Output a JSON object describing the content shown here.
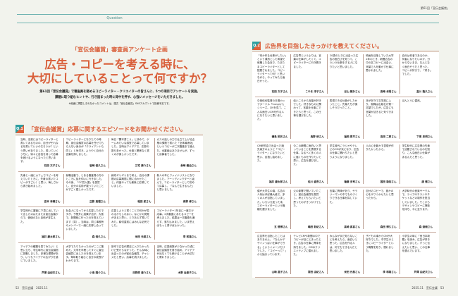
{
  "header": {
    "section_label": "Question",
    "issue_label": "第61回「宣伝会議賞」"
  },
  "intro": {
    "subtitle": "「宣伝会議賞」審査員アンケート企画",
    "title_line1": "広告・コピーを考える時に、",
    "title_line2": "大切にしていることって何ですか？",
    "lead_line1": "第61回「宣伝会議賞」で審査員を務めるコピーライター・クリエイターの皆さんに、5つの項目でアンケートを実施。",
    "lead_line2": "課題に取り組むヒントや、行き詰まった時に背中を押す、心強いメッセージをいただきました。",
    "note": "※紙面に掲載しきれなかったコメントは、雑文「宣伝会議賞」SNSアカウントで投稿予定です。"
  },
  "q1": {
    "badge": "Q.1",
    "question": "「宣伝会議賞」応募に関するエピソードをお聞かせください。",
    "cells": [
      {
        "text": "当時、名前にはコピーライターと書いてあるものの、自分がそれなるを書いていいのだろうか？という思いがありました。書いていくうちに、徐々に自信を持って応募を続けるようになったと思います。",
        "name": "石田 文子さん"
      },
      {
        "text": "コピーライターになりたての時期、宣伝会議賞の応募を任せてもらえない身分が「クライアントも同じ」と気付き、ようやく自分の言葉を探しました。",
        "name": "岩崎 俊久さん"
      },
      {
        "text": "毎日「関本書こう」と決めて、ゲームみたいな感覚で応募していました。当時はアイデアで、応募の数も多かった。仕事と関係なく書くのが楽しかったです。",
        "name": "三宅 康介さん"
      },
      {
        "text": "ガスの話しの力で仕立て上げる企業の課題で書いた「全体最適化」というコピーが二次審査まで進んだ。全審査はありませんが、ずっと応募者でした。",
        "name": "長崎 義治さん"
      },
      {
        "text": "先輩と一緒にカフェでコピーを考えていたときに、先輩の書いたコピーがすごい！と思い、悔しさから書き始めました。",
        "name": "吉本 幸穂さん"
      },
      {
        "text": "就職活動で、とある審査員の方のところに話を伺いに行きました。その後、「CC賞入選」を受賞し、自分の名前が載っていたことがすごく嬉しかったです。",
        "name": "正影 真理さん"
      },
      {
        "text": "締切ギリギリまで考え、自分の課題の応募期限に間に合わせたこと。何度やっても最後に応募していました。",
        "name": "堀田 航さん"
      },
      {
        "text": "新人の年にファイナリストになりました。アートディレクターと組んで、コピーライターとして初めて応募し、「なんで生きるんだ」と思いました。",
        "name": "鳥野 修さん"
      },
      {
        "text": "学生時代に審査に下見に出していて出したのはたまたま宣伝会議からで、価値のない自信が芽生えた。",
        "name": "福井 慶太郎さん"
      },
      {
        "text": "社会人になってから応募したのですが、予想外に結果が出ず、大阪で、新聞紙に行ったのを覚えています（笑）。当時は、同じ事務所のメンバーで一緒に応募し合っていました。",
        "name": "森 浩久さん"
      },
      {
        "text": "応募しようと書くことで何かが変わるかもしれない。なにかの発見があると思い、とりあえず書いてみた。締切直前にはみんな必死でした。",
        "name": "米田 元基さん"
      },
      {
        "text": "コピーライター1年目に一度だけ応募。2次審査にあたるコピーを考えました。結果は一次審査も通らず、落ち込みました。いま思えばもっと書けばよかった。",
        "name": "李 和雄さん"
      },
      {
        "text": "アイデアの種類を見てみたい！と思い立ち、学生時代に宣伝会議賞に挑戦しました。多様な課題があり、いつもアイデアの広がりを感じていました。",
        "name": "芦澤 由紀夫さん"
      },
      {
        "text": "大学でたりたかったのがここに集めた。大学を卒業してすぐに宣伝会議賞に出したのを覚えています。毎年取り組むと自分の成長がわかります。",
        "name": "小島 陽介さん"
      },
      {
        "text": "新卒で広告代理店に入りたかったけど受からなかった。そんな時に出会ったのが宣伝会議賞。チャンスだと思い、応募を続けました。",
        "name": "日野原 達介さん"
      },
      {
        "text": "当時、応募総数が少なかった頃に宣伝会議賞を書き始め、アイデアが出なくても続けることが大切だと教わりました。",
        "name": "木野 治恵子さん"
      }
    ]
  },
  "q2": {
    "badge": "Q.2",
    "question": "広告界を目指したきっかけを教えてください。",
    "cells": [
      {
        "text": "「何か作る仕事がしたい」という漠然とした希望で就職した会社で、たまたまコピーライターとして配属されました。コピーライターって何？と思いながら、やってみたら面白かった。",
        "name": "石田 文子さん"
      },
      {
        "text": "広告界というよりは、言葉の仕事がしたくて、コピーライターに行き着きました。",
        "name": "こやま 淳子さん"
      },
      {
        "text": "20歳のときに出会った広告の面白さを知って、こういう仕事をする人になりたいと思いました。",
        "name": "谷山 雅計さん"
      },
      {
        "text": "映画を目指していた大学2年のとき、新聞広告の中の名コピーに出会い、言葉で人を動かす仕事に惹かれました。",
        "name": "高崎 卓馬さん"
      },
      {
        "text": "自分は何者であるのか、何者になりたいのか、分からないまま、なんとなく面白そうだと思った。コピーが好きで、「好き」でした。",
        "name": "直川 隆久さん"
      },
      {
        "text": "中島信也監督の日清カップヌードル「hungry?」シリーズ。CMを見て、こんな面白いCMを作る人になりたいと思いました。",
        "name": "磯島 拓矢さん"
      },
      {
        "text": "幼いころから言葉が好きでした。好きなものに関わって、言葉を仕事にできたらと思って、この仕事を選びました。",
        "name": "鳥野 修さん"
      },
      {
        "text": "表現できる仕事がしたかったこと。先輩たちが楽しそうだったこと。",
        "name": "福岡 周平さん"
      },
      {
        "text": "本が好きで文学部に入り、就職は出版社が第一志望でしたが、広告にも言葉が活きると気づきました。",
        "name": "吉田 二郎さん"
      },
      {
        "text": "ほんとうに偶然。",
        "name": "下東 史明さん"
      },
      {
        "text": "CM研究会で出会った諸先輩方のように「コピーライター」になりたいと思い、目指し始めました。",
        "name": "福井 慶太郎さん"
      },
      {
        "text": "今この瞬間に面白いと思っていることを表現する仕事。なるべく多くの人に届くものを作りたいと思い、広告を選びました。",
        "name": "佐川 盛吾さん"
      },
      {
        "text": "学生時代にラジオやテレビのCMが気になり、広告の仕事に関わりたいと思うようになりました。",
        "name": "権藤 多司さん"
      },
      {
        "text": "人の心を動かす表現が作りたかったから。",
        "name": "国田 雄佑さん"
      },
      {
        "text": "学生時代に広告業の先輩で活躍されているのを知り、こんな面白い仕事があるんだと思った。",
        "name": "唐 徹さん"
      },
      {
        "text": "僕が大学生の頃、広告の人気はほぼ最大級で、多くの人が目指していました。いろいろ迷った末、コピーライターという職種を選びました。",
        "name": "五 徳博さん"
      },
      {
        "text": "父の影響で聞いていたこと。宣伝会議賞を受賞し、考えてもらいたいと思ったのがきっかけでした。",
        "name": "嶋田 彰紀さん"
      },
      {
        "text": "言葉に興味があり、サラリーマンの中でものづくりできる仕事を探していた。",
        "name": "高崎 真喜さん"
      },
      {
        "text": "自分のコピーで、誰かの心をザワつかせたいと思ったから。",
        "name": "森田 博久さん"
      },
      {
        "text": "大学時代の音楽サークルで、ライブのチラシやチケットなどの制作を担当していました。そこからデザインやコピーに興味を持ち、今に至ります。",
        "name": "森 達哉さん"
      },
      {
        "text": "広告界を目指したことはありません。「なんかデザインっぽい仕事ができる」というイメージだけでした。「コピーって？」から始まっています。",
        "name": "山崎 晶子さん"
      },
      {
        "text": "テレビCMや新聞の中でコピーが目にとまったとき、広告の仕事に興味を持ちました。CMのクリエイティブに憧れました。",
        "name": "常田 由紀さん"
      },
      {
        "text": "みんながまだ知らないことを考えたら、面白いと思った。広告を作る人は、何でもできるんだと思いました。",
        "name": "米田 元基さん"
      },
      {
        "text": "子どもの頃からCMが大好きでした。中学生のときにコピーライターという職業を知り、憧れました。",
        "name": "李 和雄さん"
      },
      {
        "text": "小学生の時に「西日本新聞」を読み、広告が好きになりました。ずっと伝えたいと思い、この仕事を選んでいます。",
        "name": "芦澤 由紀夫さん"
      }
    ]
  },
  "footer": {
    "left": "52　宣伝会議　2025.11",
    "right": "2025.11　宣伝会議　53"
  },
  "colors": {
    "accent": "#d9603b",
    "teal": "#2d9ea0",
    "rule": "#c9aca0",
    "background": "#f2f3ed"
  }
}
